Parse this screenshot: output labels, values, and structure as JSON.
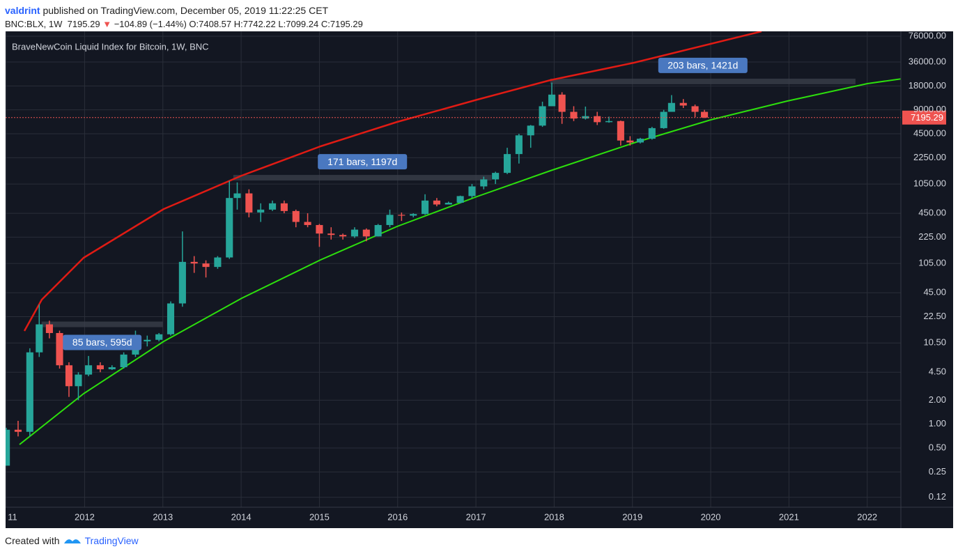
{
  "header": {
    "author": "valdrint",
    "published": "published on TradingView.com, December 05, 2019 11:22:25 CET",
    "symbol": "BNC:BLX, 1W",
    "last": "7195.29",
    "change": "−104.89 (−1.44%)",
    "o": "O:7408.57",
    "h": "H:7742.22",
    "l": "L:7099.24",
    "c": "C:7195.29"
  },
  "footer": {
    "created": "Created with",
    "brand": "TradingView"
  },
  "chart_data": {
    "type": "candlestick",
    "title": "BraveNewCoin Liquid Index for Bitcoin, 1W, BNC",
    "log_scale": true,
    "grid": true,
    "up_color": "#26a69a",
    "down_color": "#ef5350",
    "x": [
      2011.0,
      2011.15,
      2011.3,
      2011.42,
      2011.55,
      2011.68,
      2011.8,
      2011.92,
      2012.05,
      2012.2,
      2012.35,
      2012.5,
      2012.65,
      2012.8,
      2012.95,
      2013.1,
      2013.25,
      2013.4,
      2013.55,
      2013.7,
      2013.85,
      2013.95,
      2014.1,
      2014.25,
      2014.4,
      2014.55,
      2014.7,
      2014.85,
      2015.0,
      2015.15,
      2015.3,
      2015.45,
      2015.6,
      2015.75,
      2015.9,
      2016.05,
      2016.2,
      2016.35,
      2016.5,
      2016.65,
      2016.8,
      2016.95,
      2017.1,
      2017.25,
      2017.4,
      2017.55,
      2017.7,
      2017.85,
      2017.97,
      2018.1,
      2018.25,
      2018.4,
      2018.55,
      2018.7,
      2018.85,
      2018.97,
      2019.1,
      2019.25,
      2019.4,
      2019.5,
      2019.65,
      2019.8,
      2019.92
    ],
    "open": [
      0.3,
      0.85,
      0.8,
      8,
      18,
      14,
      5.5,
      3,
      4.2,
      5.5,
      4.9,
      5.2,
      7.5,
      11,
      11.5,
      13.5,
      33,
      110,
      105,
      95,
      125,
      700,
      800,
      460,
      500,
      600,
      480,
      350,
      320,
      250,
      240,
      230,
      280,
      230,
      320,
      430,
      420,
      440,
      650,
      580,
      610,
      740,
      980,
      1200,
      1450,
      2500,
      4300,
      5700,
      10000,
      14000,
      8500,
      7000,
      7500,
      6300,
      6500,
      3700,
      3500,
      3900,
      5300,
      8500,
      11000,
      10000,
      8500
    ],
    "high": [
      0.9,
      1.1,
      9,
      32,
      20,
      15,
      6,
      4.5,
      7.2,
      6,
      5.5,
      8,
      15,
      13,
      14,
      35,
      266,
      130,
      115,
      130,
      1150,
      1100,
      900,
      600,
      650,
      650,
      500,
      450,
      330,
      300,
      250,
      300,
      290,
      330,
      500,
      460,
      450,
      780,
      700,
      630,
      750,
      1050,
      1300,
      1500,
      3000,
      4500,
      5800,
      11400,
      19800,
      15000,
      10000,
      9900,
      8500,
      7400,
      6600,
      4200,
      4000,
      5500,
      9000,
      13800,
      12300,
      10500,
      9000
    ],
    "low": [
      0.3,
      0.7,
      0.7,
      7,
      12,
      5,
      2.2,
      2,
      4,
      4.5,
      4.8,
      5,
      7,
      9.5,
      11,
      13,
      30,
      80,
      70,
      90,
      120,
      500,
      400,
      350,
      480,
      450,
      300,
      300,
      170,
      210,
      210,
      220,
      200,
      230,
      300,
      360,
      400,
      430,
      550,
      580,
      600,
      700,
      900,
      1050,
      1400,
      1900,
      3000,
      5500,
      10000,
      6000,
      6500,
      6800,
      5800,
      6200,
      3200,
      3200,
      3400,
      3800,
      5200,
      8500,
      9500,
      7300,
      7100
    ],
    "close": [
      0.85,
      0.8,
      8,
      18,
      14,
      5.5,
      3,
      4.2,
      5.5,
      4.9,
      5.2,
      7.5,
      11,
      11.5,
      13.5,
      33,
      110,
      105,
      95,
      125,
      700,
      800,
      460,
      500,
      600,
      480,
      350,
      320,
      250,
      240,
      230,
      280,
      230,
      320,
      430,
      420,
      440,
      650,
      580,
      610,
      740,
      980,
      1200,
      1450,
      2500,
      4300,
      5700,
      10000,
      14000,
      8500,
      7000,
      7500,
      6300,
      6500,
      3700,
      3500,
      3900,
      5300,
      8500,
      11000,
      10200,
      8500,
      7195.29
    ],
    "last_price": 7195.29,
    "xlim": [
      2010.99,
      2022.43
    ],
    "xticks": [
      {
        "value": 2011,
        "label": "11"
      },
      2012,
      2013,
      2014,
      2015,
      2016,
      2017,
      2018,
      2019,
      2020,
      2021,
      2022
    ],
    "ylim": [
      0.09,
      87500
    ],
    "yticks": [
      {
        "value": 0.12,
        "label": "0.12"
      },
      {
        "value": 0.25,
        "label": "0.25"
      },
      {
        "value": 0.5,
        "label": "0.50"
      },
      {
        "value": 1,
        "label": "1.00"
      },
      {
        "value": 2,
        "label": "2.00"
      },
      {
        "value": 4.5,
        "label": "4.50"
      },
      {
        "value": 10.5,
        "label": "10.50"
      },
      {
        "value": 22.5,
        "label": "22.50"
      },
      {
        "value": 45,
        "label": "45.00"
      },
      {
        "value": 105,
        "label": "105.00"
      },
      {
        "value": 225,
        "label": "225.00"
      },
      {
        "value": 450,
        "label": "450.00"
      },
      {
        "value": 1050,
        "label": "1050.00"
      },
      {
        "value": 2250,
        "label": "2250.00"
      },
      {
        "value": 4500,
        "label": "4500.00"
      },
      {
        "value": 9000,
        "label": "9000.00"
      },
      {
        "value": 18000,
        "label": "18000.00"
      },
      {
        "value": 36000,
        "label": "36000.00"
      },
      {
        "value": 76000,
        "label": "76000.00"
      }
    ],
    "ranges": [
      {
        "label": "85 bars, 595d",
        "x": [
          2011.45,
          2013.0
        ],
        "value": 18
      },
      {
        "label": "171 bars, 1197d",
        "x": [
          2013.9,
          2017.2
        ],
        "value": 1260
      },
      {
        "label": "203 bars, 1421d",
        "x": [
          2017.95,
          2021.85
        ],
        "value": 20500
      }
    ]
  }
}
